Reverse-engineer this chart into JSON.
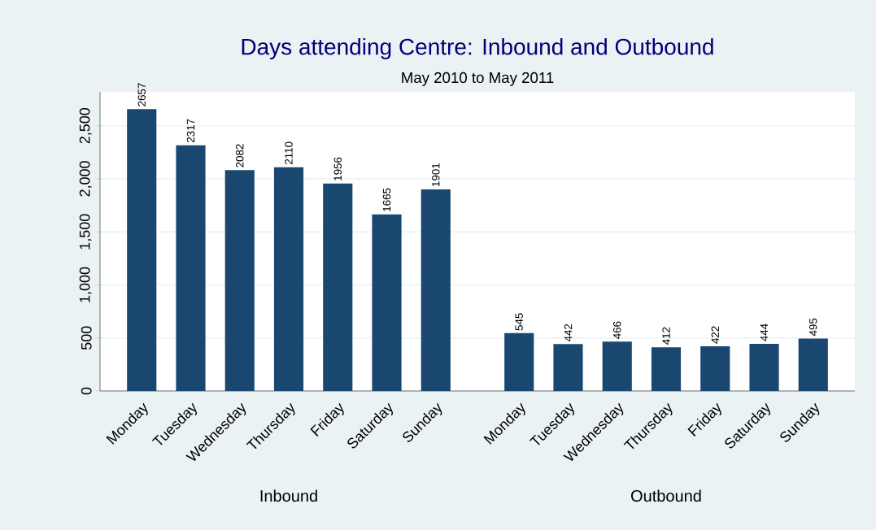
{
  "chart_data": [
    {
      "type": "bar",
      "title": "Days attending Centre: Inbound and Outbound",
      "subtitle": "May 2010 to May 2011",
      "xlabel": "Inbound",
      "categories": [
        "Monday",
        "Tuesday",
        "Wednesday",
        "Thursday",
        "Friday",
        "Saturday",
        "Sunday"
      ],
      "values": [
        2657,
        2317,
        2082,
        2110,
        1956,
        1665,
        1901
      ],
      "color": "#1a476f",
      "ylim": [
        0,
        2820
      ],
      "yticks": [
        0,
        500,
        {
          "value": 1000,
          "label": "1,000"
        },
        {
          "value": 1500,
          "label": "1,500"
        },
        {
          "value": 2000,
          "label": "2,000"
        },
        {
          "value": 2500,
          "label": "2,500"
        }
      ],
      "grid": "y",
      "data_labels": true
    },
    {
      "type": "bar",
      "xlabel": "Outbound",
      "categories": [
        "Monday",
        "Tuesday",
        "Wednesday",
        "Thursday",
        "Friday",
        "Saturday",
        "Sunday"
      ],
      "values": [
        545,
        442,
        466,
        412,
        422,
        444,
        495
      ],
      "color": "#1a476f",
      "ylim": [
        0,
        2820
      ],
      "yticks": [
        0,
        500,
        1000,
        1500,
        2000,
        2500
      ],
      "grid": "y",
      "data_labels": true,
      "tick_labels": "x"
    }
  ]
}
